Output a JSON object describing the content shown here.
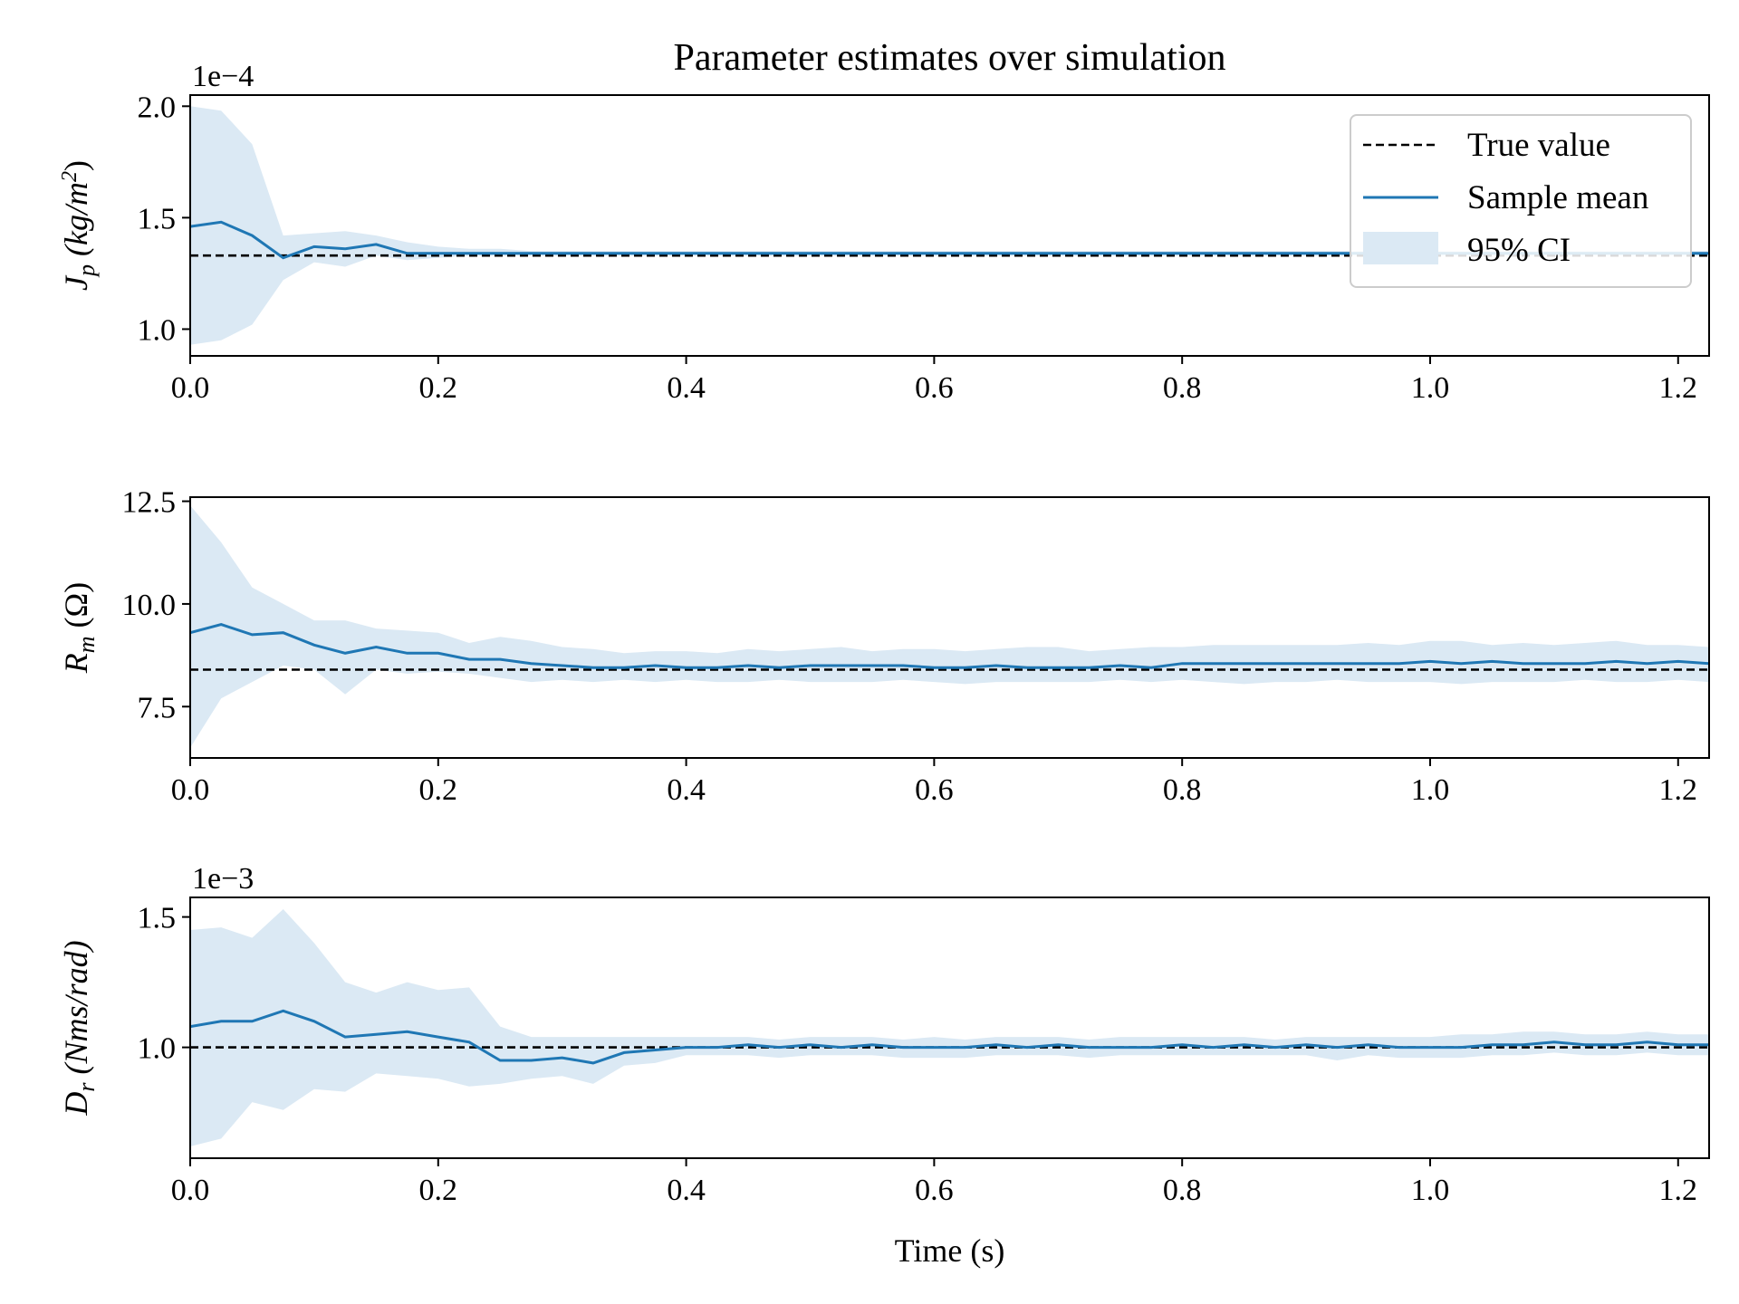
{
  "chart_data": {
    "title": "Parameter estimates over simulation",
    "xlabel": "Time (s)",
    "legend": {
      "placement": "top-right of first panel",
      "entries": [
        {
          "label": "True value",
          "style": "dashed",
          "color": "#000000"
        },
        {
          "label": "Sample mean",
          "style": "line",
          "color": "#1f77b4"
        },
        {
          "label": "95% CI",
          "style": "band",
          "color": "#1f77b4"
        }
      ]
    },
    "colors": {
      "mean": "#1f77b4",
      "band": "#dbe9f4",
      "true": "#000000"
    },
    "x": [
      0.0,
      0.025,
      0.05,
      0.075,
      0.1,
      0.125,
      0.15,
      0.175,
      0.2,
      0.225,
      0.25,
      0.275,
      0.3,
      0.325,
      0.35,
      0.375,
      0.4,
      0.425,
      0.45,
      0.475,
      0.5,
      0.525,
      0.55,
      0.575,
      0.6,
      0.625,
      0.65,
      0.675,
      0.7,
      0.725,
      0.75,
      0.775,
      0.8,
      0.825,
      0.85,
      0.875,
      0.9,
      0.925,
      0.95,
      0.975,
      1.0,
      1.025,
      1.05,
      1.075,
      1.1,
      1.125,
      1.15,
      1.175,
      1.2,
      1.225
    ],
    "xlim": [
      0.0,
      1.225
    ],
    "xticks": [
      "0.0",
      "0.2",
      "0.4",
      "0.6",
      "0.8",
      "1.0",
      "1.2"
    ],
    "panels": [
      {
        "type": "line",
        "ylabel_symbol": "J",
        "ylabel_sub": "p",
        "ylabel_unit": "(kg/m",
        "ylabel_unit_sup": "2",
        "ylabel_unit_close": ")",
        "multiplier": "1e−4",
        "ylim": [
          0.88,
          2.05
        ],
        "yticks": [
          1.0,
          1.5,
          2.0
        ],
        "ytick_labels": [
          "1.0",
          "1.5",
          "2.0"
        ],
        "true_value": 1.33,
        "mean": [
          1.46,
          1.48,
          1.42,
          1.32,
          1.37,
          1.36,
          1.38,
          1.34,
          1.34,
          1.34,
          1.34,
          1.34,
          1.34,
          1.34,
          1.34,
          1.34,
          1.34,
          1.34,
          1.34,
          1.34,
          1.34,
          1.34,
          1.34,
          1.34,
          1.34,
          1.34,
          1.34,
          1.34,
          1.34,
          1.34,
          1.34,
          1.34,
          1.34,
          1.34,
          1.34,
          1.34,
          1.34,
          1.34,
          1.34,
          1.34,
          1.34,
          1.34,
          1.34,
          1.34,
          1.34,
          1.34,
          1.34,
          1.34,
          1.34,
          1.34
        ],
        "ci_upper": [
          2.0,
          1.98,
          1.83,
          1.42,
          1.43,
          1.44,
          1.42,
          1.39,
          1.37,
          1.36,
          1.36,
          1.35,
          1.35,
          1.35,
          1.35,
          1.35,
          1.35,
          1.35,
          1.35,
          1.35,
          1.35,
          1.35,
          1.35,
          1.35,
          1.35,
          1.35,
          1.35,
          1.35,
          1.35,
          1.35,
          1.35,
          1.35,
          1.35,
          1.35,
          1.35,
          1.35,
          1.35,
          1.35,
          1.35,
          1.35,
          1.35,
          1.35,
          1.35,
          1.35,
          1.35,
          1.35,
          1.35,
          1.35,
          1.35,
          1.35
        ],
        "ci_lower": [
          0.93,
          0.95,
          1.02,
          1.22,
          1.3,
          1.28,
          1.33,
          1.31,
          1.32,
          1.33,
          1.33,
          1.33,
          1.33,
          1.33,
          1.33,
          1.33,
          1.33,
          1.33,
          1.33,
          1.33,
          1.33,
          1.33,
          1.33,
          1.33,
          1.33,
          1.33,
          1.33,
          1.33,
          1.33,
          1.33,
          1.33,
          1.33,
          1.33,
          1.33,
          1.33,
          1.33,
          1.33,
          1.33,
          1.33,
          1.33,
          1.33,
          1.33,
          1.33,
          1.33,
          1.33,
          1.33,
          1.33,
          1.33,
          1.33,
          1.33
        ]
      },
      {
        "type": "line",
        "ylabel_symbol": "R",
        "ylabel_sub": "m",
        "ylabel_unit": "(Ω)",
        "ylabel_unit_sup": "",
        "ylabel_unit_close": "",
        "multiplier": "",
        "ylim": [
          6.25,
          12.6
        ],
        "yticks": [
          7.5,
          10.0,
          12.5
        ],
        "ytick_labels": [
          "7.5",
          "10.0",
          "12.5"
        ],
        "true_value": 8.4,
        "mean": [
          9.3,
          9.5,
          9.25,
          9.3,
          9.0,
          8.8,
          8.95,
          8.8,
          8.8,
          8.65,
          8.65,
          8.55,
          8.5,
          8.45,
          8.45,
          8.5,
          8.45,
          8.45,
          8.5,
          8.45,
          8.5,
          8.5,
          8.5,
          8.5,
          8.45,
          8.45,
          8.5,
          8.45,
          8.45,
          8.45,
          8.5,
          8.45,
          8.55,
          8.55,
          8.55,
          8.55,
          8.55,
          8.55,
          8.55,
          8.55,
          8.6,
          8.55,
          8.6,
          8.55,
          8.55,
          8.55,
          8.6,
          8.55,
          8.6,
          8.55
        ],
        "ci_upper": [
          12.4,
          11.5,
          10.4,
          10.0,
          9.6,
          9.6,
          9.4,
          9.35,
          9.3,
          9.05,
          9.2,
          9.1,
          8.95,
          8.9,
          8.8,
          8.85,
          8.85,
          8.8,
          8.9,
          8.85,
          8.9,
          8.95,
          8.85,
          8.9,
          8.9,
          8.85,
          8.9,
          8.95,
          8.95,
          8.85,
          8.9,
          8.95,
          8.95,
          9.0,
          9.0,
          9.0,
          9.0,
          9.0,
          9.05,
          9.0,
          9.1,
          9.1,
          9.0,
          9.05,
          9.0,
          9.05,
          9.1,
          9.0,
          9.0,
          8.95
        ],
        "ci_lower": [
          6.5,
          7.7,
          8.1,
          8.5,
          8.4,
          7.8,
          8.4,
          8.3,
          8.35,
          8.3,
          8.2,
          8.1,
          8.15,
          8.1,
          8.15,
          8.1,
          8.15,
          8.1,
          8.1,
          8.15,
          8.1,
          8.1,
          8.1,
          8.15,
          8.1,
          8.05,
          8.1,
          8.1,
          8.1,
          8.1,
          8.15,
          8.1,
          8.15,
          8.1,
          8.05,
          8.1,
          8.1,
          8.15,
          8.1,
          8.1,
          8.1,
          8.05,
          8.1,
          8.1,
          8.1,
          8.15,
          8.1,
          8.1,
          8.15,
          8.1
        ]
      },
      {
        "type": "line",
        "ylabel_symbol": "D",
        "ylabel_sub": "r",
        "ylabel_unit": "(Nms/rad)",
        "ylabel_unit_sup": "",
        "ylabel_unit_close": "",
        "multiplier": "1e−3",
        "ylim": [
          0.575,
          1.575
        ],
        "yticks": [
          1.0,
          1.5
        ],
        "ytick_labels": [
          "1.0",
          "1.5"
        ],
        "true_value": 1.0,
        "mean": [
          1.08,
          1.1,
          1.1,
          1.14,
          1.1,
          1.04,
          1.05,
          1.06,
          1.04,
          1.02,
          0.95,
          0.95,
          0.96,
          0.94,
          0.98,
          0.99,
          1.0,
          1.0,
          1.01,
          1.0,
          1.01,
          1.0,
          1.01,
          1.0,
          1.0,
          1.0,
          1.01,
          1.0,
          1.01,
          1.0,
          1.0,
          1.0,
          1.01,
          1.0,
          1.01,
          1.0,
          1.01,
          1.0,
          1.01,
          1.0,
          1.0,
          1.0,
          1.01,
          1.01,
          1.02,
          1.01,
          1.01,
          1.02,
          1.01,
          1.01
        ],
        "ci_upper": [
          1.45,
          1.46,
          1.42,
          1.53,
          1.4,
          1.25,
          1.21,
          1.25,
          1.22,
          1.23,
          1.08,
          1.04,
          1.04,
          1.04,
          1.04,
          1.04,
          1.04,
          1.04,
          1.04,
          1.03,
          1.04,
          1.04,
          1.04,
          1.03,
          1.04,
          1.03,
          1.04,
          1.04,
          1.04,
          1.03,
          1.04,
          1.04,
          1.04,
          1.04,
          1.04,
          1.03,
          1.04,
          1.04,
          1.04,
          1.04,
          1.04,
          1.05,
          1.05,
          1.06,
          1.06,
          1.05,
          1.05,
          1.06,
          1.05,
          1.05
        ],
        "ci_lower": [
          0.62,
          0.65,
          0.79,
          0.76,
          0.84,
          0.83,
          0.9,
          0.89,
          0.88,
          0.85,
          0.86,
          0.88,
          0.89,
          0.86,
          0.93,
          0.94,
          0.97,
          0.97,
          0.97,
          0.96,
          0.97,
          0.97,
          0.97,
          0.96,
          0.96,
          0.96,
          0.97,
          0.97,
          0.97,
          0.96,
          0.97,
          0.97,
          0.97,
          0.97,
          0.97,
          0.97,
          0.97,
          0.95,
          0.97,
          0.96,
          0.96,
          0.96,
          0.97,
          0.97,
          0.98,
          0.97,
          0.97,
          0.98,
          0.97,
          0.97
        ]
      }
    ]
  }
}
